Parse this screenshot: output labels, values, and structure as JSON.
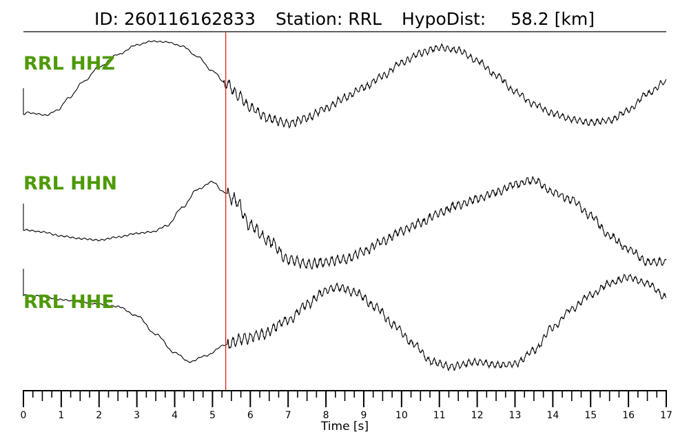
{
  "header": {
    "event_id": "ID: 260116162833",
    "station": "Station: RRL",
    "hypodist": "HypoDist:",
    "hypodist_value": "58.2 [km]"
  },
  "chart_data": {
    "type": "line",
    "xlabel": "Time [s]",
    "xlim": [
      0,
      17
    ],
    "x_ticks": [
      "0",
      "1",
      "2",
      "3",
      "4",
      "5",
      "6",
      "7",
      "8",
      "9",
      "10",
      "11",
      "12",
      "13",
      "14",
      "15",
      "16",
      "17"
    ],
    "minor_tick_step": 0.25,
    "pick_time": 5.35,
    "pick_color": "#e0201b",
    "label_color": "#4e9a06",
    "grid": false,
    "series": [
      {
        "name": "RRL HHZ",
        "noise_from": 5.3,
        "points": [
          [
            0,
            0.6
          ],
          [
            0.1,
            0.55
          ],
          [
            0.3,
            0.58
          ],
          [
            0.6,
            0.62
          ],
          [
            0.9,
            0.5
          ],
          [
            1.2,
            0.2
          ],
          [
            1.6,
            -0.2
          ],
          [
            2.0,
            -0.55
          ],
          [
            2.5,
            -0.85
          ],
          [
            3.0,
            -1.08
          ],
          [
            3.4,
            -1.17
          ],
          [
            3.8,
            -1.15
          ],
          [
            4.2,
            -1.05
          ],
          [
            4.6,
            -0.8
          ],
          [
            5.0,
            -0.45
          ],
          [
            5.35,
            -0.15
          ],
          [
            5.7,
            0.15
          ],
          [
            6.0,
            0.45
          ],
          [
            6.5,
            0.7
          ],
          [
            7.0,
            0.82
          ],
          [
            7.5,
            0.68
          ],
          [
            8.0,
            0.45
          ],
          [
            8.5,
            0.2
          ],
          [
            9.0,
            -0.05
          ],
          [
            9.5,
            -0.32
          ],
          [
            10.0,
            -0.65
          ],
          [
            10.5,
            -0.88
          ],
          [
            11.0,
            -1.02
          ],
          [
            11.5,
            -0.95
          ],
          [
            12.0,
            -0.7
          ],
          [
            12.5,
            -0.35
          ],
          [
            13.0,
            0.05
          ],
          [
            13.5,
            0.35
          ],
          [
            14.0,
            0.58
          ],
          [
            14.5,
            0.72
          ],
          [
            15.0,
            0.8
          ],
          [
            15.5,
            0.75
          ],
          [
            16.0,
            0.5
          ],
          [
            16.5,
            0.1
          ],
          [
            17.0,
            -0.2
          ]
        ]
      },
      {
        "name": "RRL HHN",
        "noise_from": 5.4,
        "points": [
          [
            0,
            0.38
          ],
          [
            0.5,
            0.42
          ],
          [
            1.0,
            0.5
          ],
          [
            1.5,
            0.55
          ],
          [
            2.0,
            0.58
          ],
          [
            2.5,
            0.52
          ],
          [
            3.0,
            0.45
          ],
          [
            3.4,
            0.42
          ],
          [
            3.8,
            0.3
          ],
          [
            4.2,
            -0.05
          ],
          [
            4.6,
            -0.4
          ],
          [
            5.0,
            -0.55
          ],
          [
            5.3,
            -0.35
          ],
          [
            5.6,
            -0.2
          ],
          [
            6.0,
            0.3
          ],
          [
            6.5,
            0.6
          ],
          [
            7.0,
            0.95
          ],
          [
            7.5,
            1.05
          ],
          [
            8.0,
            1.0
          ],
          [
            8.5,
            0.95
          ],
          [
            9.0,
            0.8
          ],
          [
            9.5,
            0.6
          ],
          [
            10.0,
            0.4
          ],
          [
            10.5,
            0.25
          ],
          [
            11.0,
            0.05
          ],
          [
            11.5,
            -0.1
          ],
          [
            12.0,
            -0.22
          ],
          [
            12.5,
            -0.35
          ],
          [
            13.0,
            -0.5
          ],
          [
            13.5,
            -0.58
          ],
          [
            14.0,
            -0.35
          ],
          [
            14.5,
            -0.2
          ],
          [
            15.0,
            0.1
          ],
          [
            15.5,
            0.5
          ],
          [
            16.0,
            0.75
          ],
          [
            16.5,
            1.0
          ],
          [
            17.0,
            1.0
          ]
        ]
      },
      {
        "name": "RRL HHE",
        "noise_from": 5.4,
        "points": [
          [
            0,
            -0.7
          ],
          [
            0.4,
            -0.68
          ],
          [
            1.0,
            -0.6
          ],
          [
            1.5,
            -0.55
          ],
          [
            2.0,
            -0.5
          ],
          [
            2.5,
            -0.45
          ],
          [
            3.0,
            -0.25
          ],
          [
            3.5,
            0.15
          ],
          [
            4.0,
            0.55
          ],
          [
            4.4,
            0.75
          ],
          [
            4.8,
            0.62
          ],
          [
            5.35,
            0.38
          ],
          [
            5.8,
            0.25
          ],
          [
            6.3,
            0.15
          ],
          [
            7.0,
            -0.15
          ],
          [
            7.5,
            -0.5
          ],
          [
            8.0,
            -0.8
          ],
          [
            8.3,
            -0.87
          ],
          [
            8.8,
            -0.75
          ],
          [
            9.3,
            -0.45
          ],
          [
            9.8,
            -0.05
          ],
          [
            10.3,
            0.35
          ],
          [
            10.8,
            0.75
          ],
          [
            11.3,
            0.85
          ],
          [
            12.0,
            0.75
          ],
          [
            12.5,
            0.82
          ],
          [
            13.0,
            0.8
          ],
          [
            13.5,
            0.5
          ],
          [
            14.0,
            0.0
          ],
          [
            14.5,
            -0.4
          ],
          [
            15.0,
            -0.7
          ],
          [
            15.5,
            -0.95
          ],
          [
            16.0,
            -1.08
          ],
          [
            16.5,
            -0.95
          ],
          [
            17.0,
            -0.65
          ]
        ]
      }
    ]
  }
}
